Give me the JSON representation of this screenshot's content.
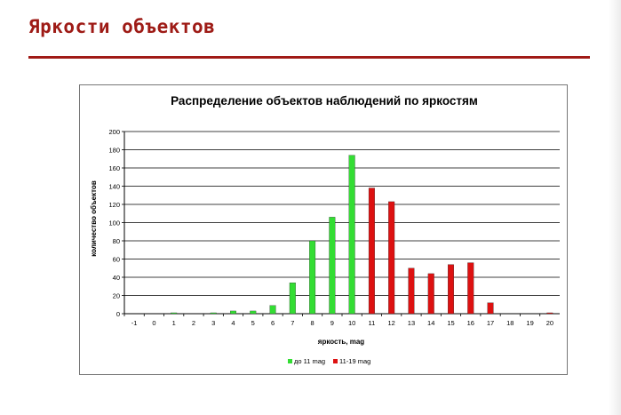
{
  "slide": {
    "title": "Яркости объектов",
    "accent_color": "#9e1b16"
  },
  "chart_data": {
    "type": "bar",
    "title": "Распределение объектов наблюдений по яркостям",
    "xlabel": "яркость, mag",
    "ylabel": "количество объектов",
    "categories": [
      "-1",
      "0",
      "1",
      "2",
      "3",
      "4",
      "5",
      "6",
      "7",
      "8",
      "9",
      "10",
      "11",
      "12",
      "13",
      "14",
      "15",
      "16",
      "17",
      "18",
      "19",
      "20"
    ],
    "ylim": [
      0,
      200
    ],
    "yticks": [
      0,
      20,
      40,
      60,
      80,
      100,
      120,
      140,
      160,
      180,
      200
    ],
    "series": [
      {
        "name": "до 11 mag",
        "color": "#33dd33",
        "values": [
          0,
          0,
          1,
          0,
          1,
          3,
          3,
          9,
          34,
          80,
          106,
          174,
          null,
          null,
          null,
          null,
          null,
          null,
          null,
          null,
          null,
          null
        ]
      },
      {
        "name": "11-19 mag",
        "color": "#dd1111",
        "values": [
          null,
          null,
          null,
          null,
          null,
          null,
          null,
          null,
          null,
          null,
          null,
          null,
          138,
          123,
          50,
          44,
          54,
          56,
          12,
          0,
          0,
          1
        ]
      }
    ],
    "grid": true,
    "legend_position": "bottom"
  }
}
